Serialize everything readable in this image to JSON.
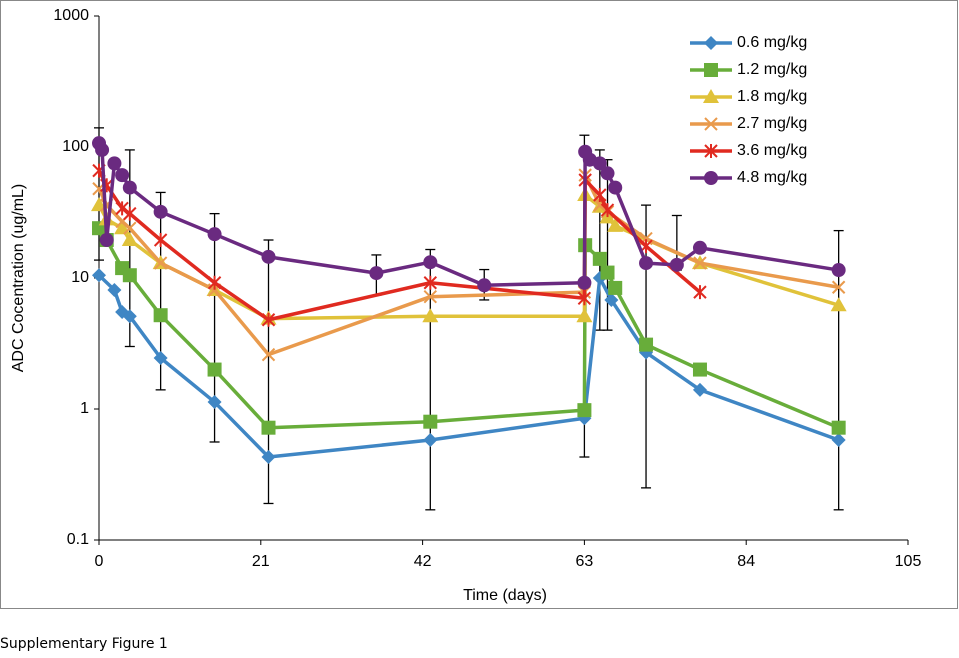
{
  "chart_data": {
    "type": "line",
    "footer": "Supplementary Figure 1",
    "x_label": "Time (days)",
    "y_label": "ADC Cocentration (ug/mL)",
    "log_y": true,
    "xlim": [
      0,
      105
    ],
    "xticks": [
      0,
      21,
      42,
      63,
      84,
      105
    ],
    "ylim": [
      0.1,
      1000
    ],
    "yticks": [
      0.1,
      1,
      10,
      100,
      1000
    ],
    "legend": "upper right",
    "series": [
      {
        "name": "0.6 mg/kg",
        "color": "#3f86c4",
        "marker": "diamond",
        "x": [
          0,
          2,
          3,
          4,
          8,
          15,
          22,
          43,
          63,
          65,
          66.5,
          71,
          78,
          96
        ],
        "values": [
          10.5,
          8.1,
          5.5,
          5.1,
          2.45,
          1.13,
          0.43,
          0.58,
          0.85,
          10,
          6.8,
          2.7,
          1.4,
          0.58
        ]
      },
      {
        "name": "1.2 mg/kg",
        "color": "#68ad3a",
        "marker": "square",
        "x": [
          0,
          1,
          3,
          4,
          8,
          15,
          22,
          43,
          63,
          63.1,
          65,
          66,
          67,
          71,
          78,
          96
        ],
        "values": [
          24,
          19.5,
          11.9,
          10.5,
          5.2,
          2.0,
          0.72,
          0.8,
          0.98,
          17.8,
          14,
          11,
          8.4,
          3.1,
          2.0,
          0.72
        ]
      },
      {
        "name": "1.8 mg/kg",
        "color": "#e0c23a",
        "marker": "triangle",
        "x": [
          0,
          1,
          3,
          4,
          8,
          15,
          22,
          43,
          63,
          63.1,
          65,
          66,
          67,
          78,
          96
        ],
        "values": [
          36,
          28,
          24,
          19.5,
          13,
          8.1,
          4.9,
          5.1,
          5.1,
          43,
          35,
          29,
          25,
          13,
          6.2
        ]
      },
      {
        "name": "2.7 mg/kg",
        "color": "#e99a4c",
        "marker": "x",
        "x": [
          0,
          1,
          3,
          4,
          8,
          15,
          22,
          43,
          63,
          63.1,
          65,
          66,
          71,
          78,
          96
        ],
        "values": [
          48,
          36,
          27,
          24,
          13,
          8.1,
          2.6,
          7.2,
          7.8,
          61,
          36,
          32,
          20,
          13,
          8.5
        ]
      },
      {
        "name": "3.6 mg/kg",
        "color": "#e02a20",
        "marker": "star",
        "x": [
          0,
          1,
          3,
          4,
          8,
          15,
          22,
          43,
          63,
          63.1,
          65,
          66,
          71,
          78
        ],
        "values": [
          66,
          51,
          34,
          31,
          19.5,
          9.2,
          4.8,
          9.2,
          7,
          56,
          43,
          33,
          17.5,
          7.8
        ]
      },
      {
        "name": "4.8 mg/kg",
        "color": "#6a2a80",
        "marker": "circle",
        "x": [
          0,
          0.4,
          1,
          2,
          3,
          4,
          8,
          15,
          22,
          36,
          43,
          50,
          63,
          63.1,
          63.7,
          65,
          66,
          67,
          71,
          75,
          78,
          96
        ],
        "values": [
          107,
          95,
          19.5,
          75,
          61,
          49,
          32,
          21.6,
          14.5,
          10.9,
          13.2,
          8.8,
          9.2,
          92,
          80,
          75,
          63,
          49,
          13,
          12.6,
          17,
          11.5
        ]
      }
    ],
    "error_bars": {
      "x": [
        0,
        4,
        8,
        15,
        22,
        36,
        43,
        50,
        63,
        65,
        66,
        71,
        75,
        96
      ],
      "low": [
        13.7,
        3,
        1.4,
        0.56,
        0.19,
        7.4,
        0.17,
        6.8,
        0.43,
        4,
        4,
        0.25,
        11.5,
        0.17
      ],
      "high": [
        140,
        95,
        45,
        31,
        19.5,
        15,
        16.5,
        11.6,
        123,
        95,
        80,
        36,
        30,
        23
      ]
    }
  }
}
